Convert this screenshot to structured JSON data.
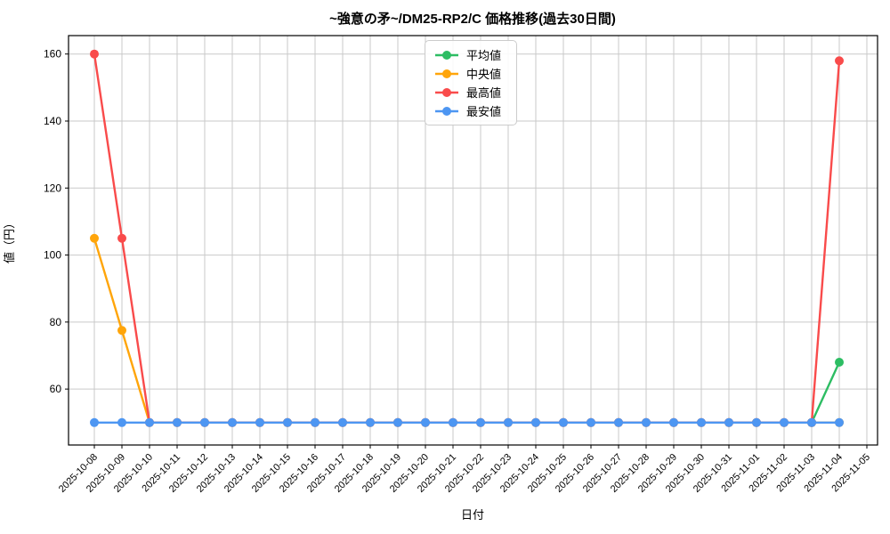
{
  "chart_data": {
    "type": "line",
    "title": "~強意の矛~/DM25-RP2/C 価格推移(過去30日間)",
    "xlabel": "日付",
    "ylabel": "値（円）",
    "grid": true,
    "legend_position": "upper center",
    "x_tick_rotation": 45,
    "ylim": [
      43.3,
      165.5
    ],
    "yticks": [
      60,
      80,
      100,
      120,
      140,
      160
    ],
    "categories": [
      "2025-10-08",
      "2025-10-09",
      "2025-10-10",
      "2025-10-11",
      "2025-10-12",
      "2025-10-13",
      "2025-10-14",
      "2025-10-15",
      "2025-10-16",
      "2025-10-17",
      "2025-10-18",
      "2025-10-19",
      "2025-10-20",
      "2025-10-21",
      "2025-10-22",
      "2025-10-23",
      "2025-10-24",
      "2025-10-25",
      "2025-10-26",
      "2025-10-27",
      "2025-10-28",
      "2025-10-29",
      "2025-10-30",
      "2025-10-31",
      "2025-11-01",
      "2025-11-02",
      "2025-11-03",
      "2025-11-04",
      "2025-11-05"
    ],
    "series": [
      {
        "name": "平均値",
        "color": "#2dbd63",
        "values": [
          null,
          null,
          null,
          null,
          null,
          null,
          null,
          null,
          null,
          null,
          null,
          null,
          null,
          null,
          null,
          null,
          null,
          null,
          null,
          null,
          null,
          null,
          null,
          null,
          null,
          null,
          50,
          68,
          null
        ]
      },
      {
        "name": "中央値",
        "color": "#ffa50a",
        "values": [
          105,
          77.5,
          50,
          50,
          50,
          50,
          50,
          50,
          50,
          50,
          50,
          50,
          50,
          50,
          50,
          50,
          50,
          50,
          50,
          50,
          50,
          50,
          50,
          50,
          50,
          50,
          50,
          50,
          null
        ]
      },
      {
        "name": "最高値",
        "color": "#f94b4b",
        "values": [
          160,
          105,
          50,
          50,
          50,
          50,
          50,
          50,
          50,
          50,
          50,
          50,
          50,
          50,
          50,
          50,
          50,
          50,
          50,
          50,
          50,
          50,
          50,
          50,
          50,
          50,
          50,
          158,
          null
        ]
      },
      {
        "name": "最安値",
        "color": "#4d96f2",
        "values": [
          50,
          50,
          50,
          50,
          50,
          50,
          50,
          50,
          50,
          50,
          50,
          50,
          50,
          50,
          50,
          50,
          50,
          50,
          50,
          50,
          50,
          50,
          50,
          50,
          50,
          50,
          50,
          50,
          null
        ]
      }
    ]
  }
}
